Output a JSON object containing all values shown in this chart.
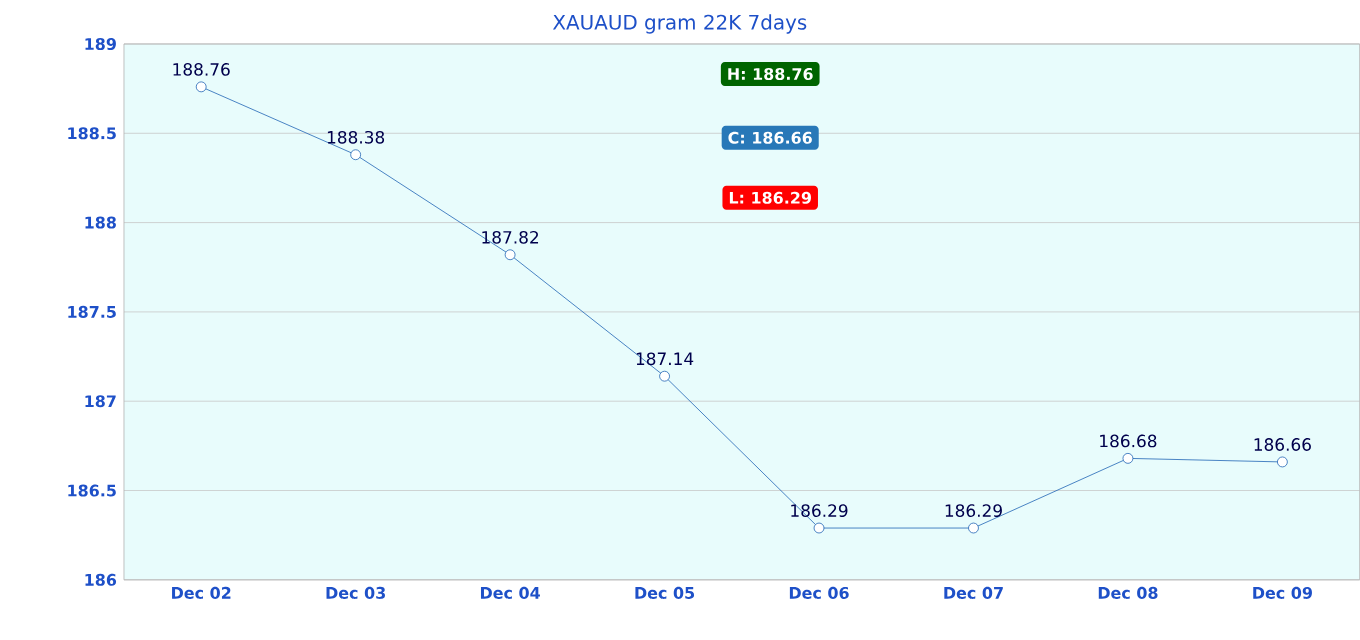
{
  "chart_data": {
    "type": "line",
    "title": "XAUAUD gram 22K 7days",
    "categories": [
      "Dec 02",
      "Dec 03",
      "Dec 04",
      "Dec 05",
      "Dec 06",
      "Dec 07",
      "Dec 08",
      "Dec 09"
    ],
    "values": [
      188.76,
      188.38,
      187.82,
      187.14,
      186.29,
      186.29,
      186.68,
      186.66
    ],
    "color": "#1f64b4",
    "marker": "circle",
    "line_style": "solid",
    "data_labels": true,
    "grid": "y",
    "ylim": [
      186,
      189
    ],
    "yticks": [
      186,
      186.5,
      187,
      187.5,
      188,
      188.5,
      189
    ],
    "annotations": [
      "H: 188.76",
      "C: 186.66",
      "L: 186.29"
    ]
  }
}
